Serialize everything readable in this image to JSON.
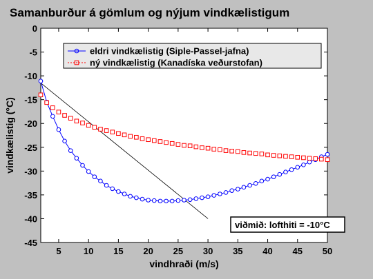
{
  "chart_data": {
    "type": "line",
    "title": "Samanburður á gömlum og nýjum vindkælistigum",
    "xlabel": "vindhraði (m/s)",
    "ylabel": "vindkælistig (°C)",
    "xlim": [
      2,
      50
    ],
    "ylim": [
      -45,
      0
    ],
    "xticks": [
      5,
      10,
      15,
      20,
      25,
      30,
      35,
      40,
      45,
      50
    ],
    "yticks": [
      0,
      -5,
      -10,
      -15,
      -20,
      -25,
      -30,
      -35,
      -40,
      -45
    ],
    "grid": false,
    "legend_position": "top-right",
    "series": [
      {
        "name": "eldri vindkælistig (Siple-Passel-jafna)",
        "color": "#0000ff",
        "marker": "circle",
        "x": [
          2,
          3,
          4,
          5,
          6,
          7,
          8,
          9,
          10,
          11,
          12,
          13,
          14,
          15,
          16,
          17,
          18,
          19,
          20,
          21,
          22,
          23,
          24,
          25,
          26,
          27,
          28,
          29,
          30,
          31,
          32,
          33,
          34,
          35,
          36,
          37,
          38,
          39,
          40,
          41,
          42,
          43,
          44,
          45,
          46,
          47,
          48,
          49,
          50
        ],
        "y": [
          -11.1,
          -15.5,
          -18.5,
          -21.3,
          -23.7,
          -25.7,
          -27.3,
          -28.8,
          -30.1,
          -31.2,
          -32.1,
          -33.0,
          -33.7,
          -34.3,
          -34.8,
          -35.3,
          -35.6,
          -35.9,
          -36.1,
          -36.2,
          -36.3,
          -36.3,
          -36.3,
          -36.2,
          -36.1,
          -36.0,
          -35.8,
          -35.6,
          -35.4,
          -35.1,
          -34.8,
          -34.5,
          -34.1,
          -33.8,
          -33.4,
          -33.0,
          -32.6,
          -32.1,
          -31.7,
          -31.2,
          -30.7,
          -30.2,
          -29.7,
          -29.2,
          -28.7,
          -28.1,
          -27.6,
          -27.0,
          -26.5
        ]
      },
      {
        "name": "ný vindkælistig (Kanadíska veðurstofan)",
        "color": "#ff0000",
        "marker": "square",
        "x": [
          2,
          3,
          4,
          5,
          6,
          7,
          8,
          9,
          10,
          11,
          12,
          13,
          14,
          15,
          16,
          17,
          18,
          19,
          20,
          21,
          22,
          23,
          24,
          25,
          26,
          27,
          28,
          29,
          30,
          31,
          32,
          33,
          34,
          35,
          36,
          37,
          38,
          39,
          40,
          41,
          42,
          43,
          44,
          45,
          46,
          47,
          48,
          49,
          50
        ],
        "y": [
          -14.0,
          -15.6,
          -16.7,
          -17.6,
          -18.3,
          -18.9,
          -19.5,
          -19.9,
          -20.4,
          -20.8,
          -21.2,
          -21.5,
          -21.8,
          -22.1,
          -22.4,
          -22.7,
          -22.9,
          -23.2,
          -23.4,
          -23.6,
          -23.8,
          -24.0,
          -24.2,
          -24.4,
          -24.6,
          -24.7,
          -24.9,
          -25.1,
          -25.2,
          -25.4,
          -25.5,
          -25.7,
          -25.8,
          -25.9,
          -26.1,
          -26.2,
          -26.3,
          -26.4,
          -26.6,
          -26.7,
          -26.8,
          -26.9,
          -27.0,
          -27.1,
          -27.2,
          -27.3,
          -27.4,
          -27.5,
          -27.6
        ]
      }
    ],
    "reference_line": {
      "x": [
        2,
        30
      ],
      "y": [
        -11.5,
        -40
      ],
      "color": "#000000"
    },
    "annotation": "viðmið: lofthiti =  -10°C"
  }
}
